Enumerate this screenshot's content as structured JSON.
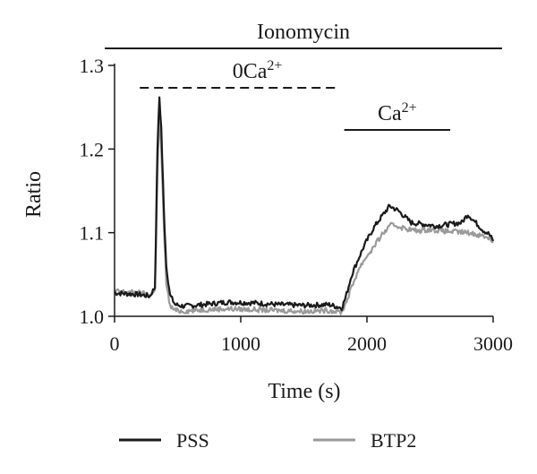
{
  "chart_data": {
    "type": "line",
    "title": "",
    "xlabel": "Time (s)",
    "ylabel": "Ratio",
    "xlim": [
      0,
      3000
    ],
    "ylim": [
      1.0,
      1.3
    ],
    "xticks": [
      0,
      1000,
      2000,
      3000
    ],
    "yticks": [
      1.0,
      1.1,
      1.2,
      1.3
    ],
    "xtick_labels": [
      "0",
      "1000",
      "2000",
      "3000"
    ],
    "ytick_labels": [
      "1.0",
      "1.1",
      "1.2",
      "1.3"
    ],
    "grid": false,
    "legend_position": "bottom",
    "series": [
      {
        "name": "PSS",
        "color": "#1a1a1a",
        "points": [
          [
            0,
            1.028
          ],
          [
            100,
            1.027
          ],
          [
            200,
            1.026
          ],
          [
            280,
            1.024
          ],
          [
            320,
            1.035
          ],
          [
            340,
            1.2
          ],
          [
            355,
            1.262
          ],
          [
            370,
            1.225
          ],
          [
            390,
            1.13
          ],
          [
            410,
            1.06
          ],
          [
            440,
            1.025
          ],
          [
            480,
            1.014
          ],
          [
            550,
            1.012
          ],
          [
            700,
            1.014
          ],
          [
            900,
            1.017
          ],
          [
            1100,
            1.016
          ],
          [
            1300,
            1.014
          ],
          [
            1500,
            1.013
          ],
          [
            1700,
            1.014
          ],
          [
            1800,
            1.01
          ],
          [
            1830,
            1.022
          ],
          [
            1880,
            1.05
          ],
          [
            1930,
            1.068
          ],
          [
            1980,
            1.085
          ],
          [
            2050,
            1.105
          ],
          [
            2120,
            1.12
          ],
          [
            2180,
            1.132
          ],
          [
            2250,
            1.126
          ],
          [
            2350,
            1.112
          ],
          [
            2450,
            1.11
          ],
          [
            2550,
            1.108
          ],
          [
            2650,
            1.11
          ],
          [
            2750,
            1.112
          ],
          [
            2800,
            1.122
          ],
          [
            2850,
            1.114
          ],
          [
            2920,
            1.103
          ],
          [
            2970,
            1.098
          ],
          [
            3000,
            1.09
          ]
        ]
      },
      {
        "name": "BTP2",
        "color": "#9a9a9a",
        "points": [
          [
            0,
            1.03
          ],
          [
            100,
            1.029
          ],
          [
            200,
            1.028
          ],
          [
            280,
            1.026
          ],
          [
            320,
            1.03
          ],
          [
            340,
            1.17
          ],
          [
            355,
            1.245
          ],
          [
            370,
            1.2
          ],
          [
            390,
            1.11
          ],
          [
            410,
            1.04
          ],
          [
            440,
            1.012
          ],
          [
            480,
            1.007
          ],
          [
            550,
            1.006
          ],
          [
            700,
            1.008
          ],
          [
            900,
            1.009
          ],
          [
            1100,
            1.008
          ],
          [
            1300,
            1.007
          ],
          [
            1500,
            1.006
          ],
          [
            1700,
            1.007
          ],
          [
            1800,
            1.005
          ],
          [
            1830,
            1.015
          ],
          [
            1880,
            1.035
          ],
          [
            1930,
            1.055
          ],
          [
            1980,
            1.068
          ],
          [
            2050,
            1.082
          ],
          [
            2120,
            1.098
          ],
          [
            2200,
            1.11
          ],
          [
            2300,
            1.105
          ],
          [
            2400,
            1.102
          ],
          [
            2500,
            1.104
          ],
          [
            2600,
            1.102
          ],
          [
            2700,
            1.101
          ],
          [
            2800,
            1.1
          ],
          [
            2900,
            1.097
          ],
          [
            2970,
            1.094
          ],
          [
            3000,
            1.088
          ]
        ]
      }
    ],
    "bars": [
      {
        "label": "Ionomycin",
        "x_start": 440,
        "x_end": 3000,
        "style": "solid"
      },
      {
        "label": "0Ca",
        "superscript": "2+",
        "x_start": 200,
        "x_end": 1780,
        "style": "dashed"
      },
      {
        "label": "Ca",
        "superscript": "2+",
        "x_start": 1820,
        "x_end": 2660,
        "style": "solid"
      }
    ]
  }
}
